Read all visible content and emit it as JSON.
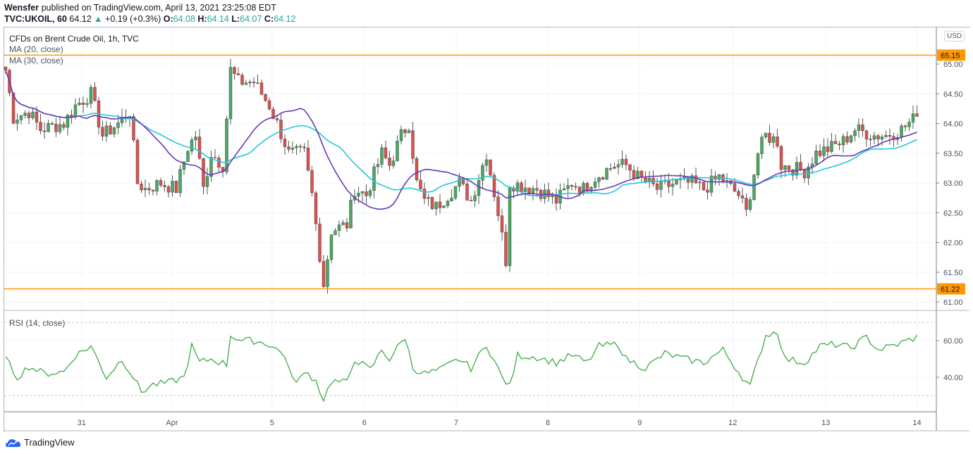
{
  "header": {
    "author": "Wensfer",
    "published": "published on TradingView.com, April 13, 2021 23:25:08 EDT",
    "symbol": "TVC:UKOIL, 60",
    "last": "64.12",
    "change": "+0.19 (+0.3%)",
    "o_label": "O:",
    "o": "64.08",
    "h_label": "H:",
    "h": "64.14",
    "l_label": "L:",
    "l": "64.07",
    "c_label": "C:",
    "c": "64.12"
  },
  "legend": {
    "title": "CFDs on Brent Crude Oil, 1h, TVC",
    "ma20": "MA (20, close)",
    "ma30": "MA (30, close)",
    "rsi": "RSI (14, close)"
  },
  "currency": "USD",
  "logo": "TradingView",
  "colors": {
    "up": "#4ca765",
    "down": "#d9534f",
    "ma20": "#673ab7",
    "ma30": "#26c6da",
    "line": "#ff9800",
    "rsi": "#4caf50"
  },
  "chart_data": {
    "type": "candlestick",
    "price_axis": {
      "ticks": [
        "65.00",
        "64.50",
        "64.00",
        "63.50",
        "63.00",
        "62.50",
        "62.00",
        "61.50",
        "61.00"
      ],
      "range": [
        60.85,
        65.55
      ]
    },
    "hlines": [
      {
        "value": 65.15,
        "label": "65.15"
      },
      {
        "value": 61.22,
        "label": "61.22"
      }
    ],
    "time_axis": {
      "ticks": [
        {
          "hour": 19.6,
          "label": "31"
        },
        {
          "hour": 42.9,
          "label": "Apr"
        },
        {
          "hour": 68.7,
          "label": "5"
        },
        {
          "hour": 92.5,
          "label": "6"
        },
        {
          "hour": 116.2,
          "label": "7"
        },
        {
          "hour": 139.8,
          "label": "8"
        },
        {
          "hour": 163.5,
          "label": "9"
        },
        {
          "hour": 187.5,
          "label": "12"
        },
        {
          "hour": 211.5,
          "label": "13"
        },
        {
          "hour": 235,
          "label": "14"
        }
      ]
    },
    "close_keypoints": [
      [
        0,
        64.9
      ],
      [
        2,
        64.1
      ],
      [
        6,
        64.2
      ],
      [
        9,
        63.9
      ],
      [
        15,
        64.0
      ],
      [
        18,
        64.3
      ],
      [
        22,
        64.5
      ],
      [
        25,
        63.8
      ],
      [
        29,
        64.0
      ],
      [
        32,
        64.2
      ],
      [
        34,
        63.0
      ],
      [
        36,
        62.9
      ],
      [
        40,
        63.0
      ],
      [
        44,
        62.9
      ],
      [
        47,
        63.6
      ],
      [
        49,
        63.8
      ],
      [
        51,
        62.9
      ],
      [
        53,
        63.5
      ],
      [
        56,
        63.3
      ],
      [
        58,
        64.9
      ],
      [
        60,
        64.7
      ],
      [
        64,
        64.7
      ],
      [
        68,
        64.3
      ],
      [
        70,
        64.0
      ],
      [
        73,
        63.5
      ],
      [
        77,
        63.5
      ],
      [
        79,
        62.8
      ],
      [
        82,
        61.3
      ],
      [
        84,
        62.2
      ],
      [
        88,
        62.3
      ],
      [
        90,
        62.9
      ],
      [
        93,
        62.8
      ],
      [
        97,
        63.5
      ],
      [
        99,
        63.3
      ],
      [
        102,
        63.8
      ],
      [
        104,
        64.0
      ],
      [
        106,
        63.0
      ],
      [
        108,
        62.7
      ],
      [
        111,
        62.6
      ],
      [
        117,
        63.0
      ],
      [
        120,
        62.7
      ],
      [
        124,
        63.5
      ],
      [
        127,
        62.5
      ],
      [
        129,
        61.7
      ],
      [
        130,
        63.0
      ],
      [
        137,
        62.9
      ],
      [
        142,
        62.7
      ],
      [
        146,
        63.0
      ],
      [
        149,
        62.9
      ],
      [
        152,
        63.1
      ],
      [
        157,
        63.3
      ],
      [
        160,
        63.3
      ],
      [
        163,
        63.1
      ],
      [
        168,
        62.9
      ],
      [
        173,
        63.0
      ],
      [
        177,
        63.0
      ],
      [
        180,
        62.9
      ],
      [
        184,
        63.1
      ],
      [
        189,
        62.8
      ],
      [
        191,
        62.5
      ],
      [
        194,
        63.5
      ],
      [
        196,
        63.8
      ],
      [
        199,
        63.7
      ],
      [
        200,
        63.3
      ],
      [
        206,
        63.2
      ],
      [
        209,
        63.5
      ],
      [
        213,
        63.6
      ],
      [
        216,
        63.7
      ],
      [
        219,
        63.9
      ],
      [
        224,
        63.8
      ],
      [
        227,
        63.8
      ],
      [
        231,
        63.9
      ],
      [
        235,
        64.12
      ]
    ],
    "rsi": {
      "ticks": [
        "60.00",
        "40.00"
      ],
      "range": [
        25,
        75
      ],
      "bands": [
        70,
        30
      ],
      "keypoints": [
        [
          0,
          50
        ],
        [
          3,
          40
        ],
        [
          6,
          46
        ],
        [
          10,
          42
        ],
        [
          15,
          43
        ],
        [
          18,
          52
        ],
        [
          22,
          57
        ],
        [
          26,
          40
        ],
        [
          30,
          50
        ],
        [
          33,
          40
        ],
        [
          35,
          32
        ],
        [
          38,
          36
        ],
        [
          42,
          37
        ],
        [
          46,
          40
        ],
        [
          48,
          57
        ],
        [
          50,
          48
        ],
        [
          53,
          50
        ],
        [
          57,
          47
        ],
        [
          58,
          63
        ],
        [
          61,
          60
        ],
        [
          64,
          60
        ],
        [
          68,
          58
        ],
        [
          72,
          52
        ],
        [
          74,
          38
        ],
        [
          78,
          42
        ],
        [
          80,
          38
        ],
        [
          82,
          28
        ],
        [
          84,
          38
        ],
        [
          88,
          37
        ],
        [
          90,
          50
        ],
        [
          94,
          44
        ],
        [
          97,
          55
        ],
        [
          99,
          50
        ],
        [
          103,
          62
        ],
        [
          105,
          45
        ],
        [
          108,
          42
        ],
        [
          112,
          44
        ],
        [
          117,
          50
        ],
        [
          120,
          45
        ],
        [
          124,
          58
        ],
        [
          128,
          40
        ],
        [
          130,
          35
        ],
        [
          132,
          52
        ],
        [
          137,
          51
        ],
        [
          142,
          48
        ],
        [
          146,
          52
        ],
        [
          150,
          48
        ],
        [
          153,
          57
        ],
        [
          158,
          58
        ],
        [
          160,
          50
        ],
        [
          165,
          45
        ],
        [
          170,
          53
        ],
        [
          175,
          50
        ],
        [
          180,
          48
        ],
        [
          185,
          55
        ],
        [
          190,
          40
        ],
        [
          192,
          35
        ],
        [
          196,
          63
        ],
        [
          199,
          65
        ],
        [
          201,
          50
        ],
        [
          206,
          48
        ],
        [
          210,
          57
        ],
        [
          214,
          58
        ],
        [
          218,
          56
        ],
        [
          222,
          62
        ],
        [
          225,
          55
        ],
        [
          230,
          58
        ],
        [
          235,
          62
        ]
      ]
    }
  }
}
